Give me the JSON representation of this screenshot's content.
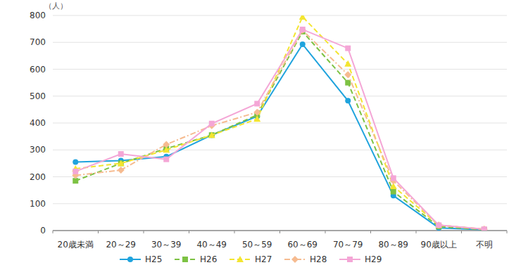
{
  "chart_data": {
    "type": "line",
    "y_label": "（人）",
    "categories": [
      "20歳未満",
      "20～29",
      "30～39",
      "40～49",
      "50～59",
      "60～69",
      "70～79",
      "80～89",
      "90歳以上",
      "不明"
    ],
    "series": [
      {
        "name": "H25",
        "color": "#1fa3dd",
        "marker": "circle",
        "line_style": "solid",
        "values": [
          255,
          260,
          275,
          355,
          425,
          693,
          483,
          130,
          10,
          3
        ]
      },
      {
        "name": "H26",
        "color": "#7dc243",
        "marker": "square",
        "line_style": "dashed",
        "values": [
          185,
          250,
          305,
          355,
          430,
          740,
          550,
          145,
          15,
          3
        ]
      },
      {
        "name": "H27",
        "color": "#f3e530",
        "marker": "triangle",
        "line_style": "dashed",
        "values": [
          230,
          250,
          300,
          355,
          415,
          795,
          620,
          165,
          20,
          5
        ]
      },
      {
        "name": "H28",
        "color": "#f6bb90",
        "marker": "diamond",
        "line_style": "dashdot",
        "values": [
          205,
          225,
          320,
          390,
          440,
          745,
          580,
          185,
          20,
          5
        ]
      },
      {
        "name": "H29",
        "color": "#f4a6d6",
        "marker": "square",
        "line_style": "solid",
        "values": [
          220,
          285,
          265,
          398,
          472,
          748,
          678,
          195,
          20,
          5
        ]
      }
    ],
    "ylim": [
      0,
      800
    ],
    "yticks": [
      0,
      100,
      200,
      300,
      400,
      500,
      600,
      700,
      800
    ],
    "grid": true,
    "legend": "bottom"
  }
}
